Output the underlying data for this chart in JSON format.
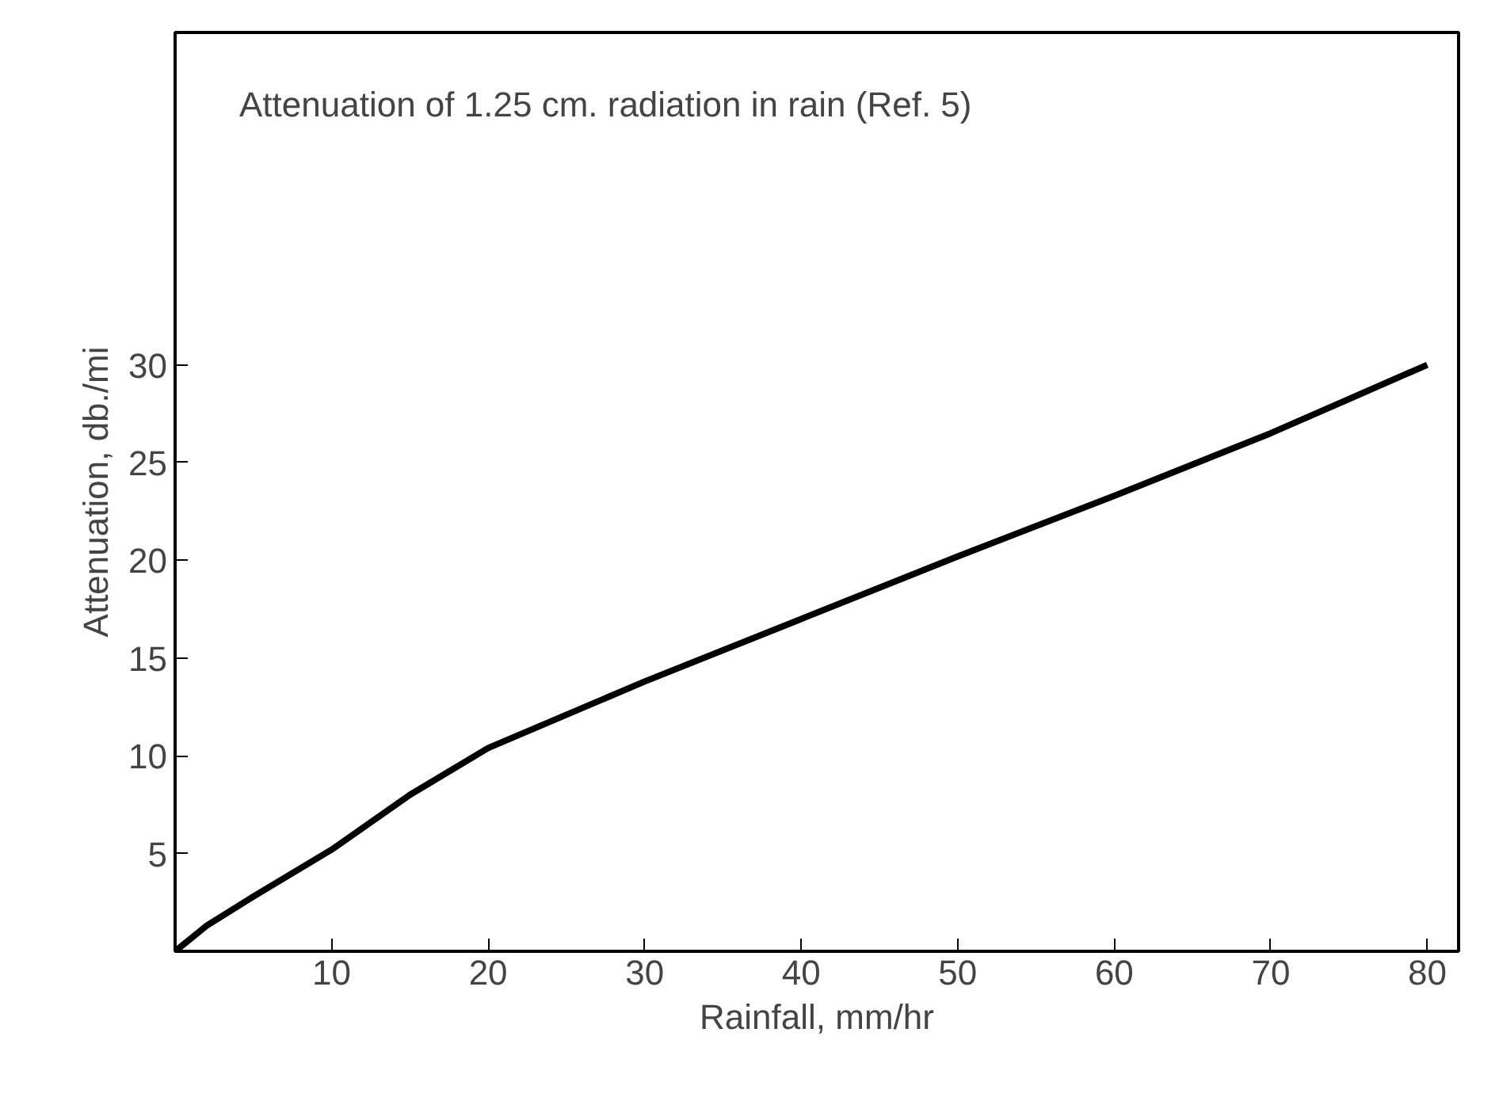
{
  "chart_data": {
    "type": "line",
    "title": "Attenuation of 1.25 cm. radiation in rain (Ref. 5)",
    "xlabel": "Rainfall, mm/hr",
    "ylabel": "Attenuation, db./mi",
    "x": [
      0,
      2,
      5,
      10,
      15,
      20,
      30,
      40,
      50,
      60,
      70,
      80
    ],
    "series": [
      {
        "color": "#000000",
        "values": [
          0,
          1.3,
          2.8,
          5.2,
          8,
          10.4,
          13.8,
          17,
          20.2,
          23.3,
          26.5,
          30
        ]
      }
    ],
    "xlim": [
      0,
      82
    ],
    "ylim": [
      0,
      47
    ],
    "xticks": [
      10,
      20,
      30,
      40,
      50,
      60,
      70,
      80
    ],
    "yticks": [
      5,
      10,
      15,
      20,
      25,
      30
    ],
    "grid": false
  }
}
